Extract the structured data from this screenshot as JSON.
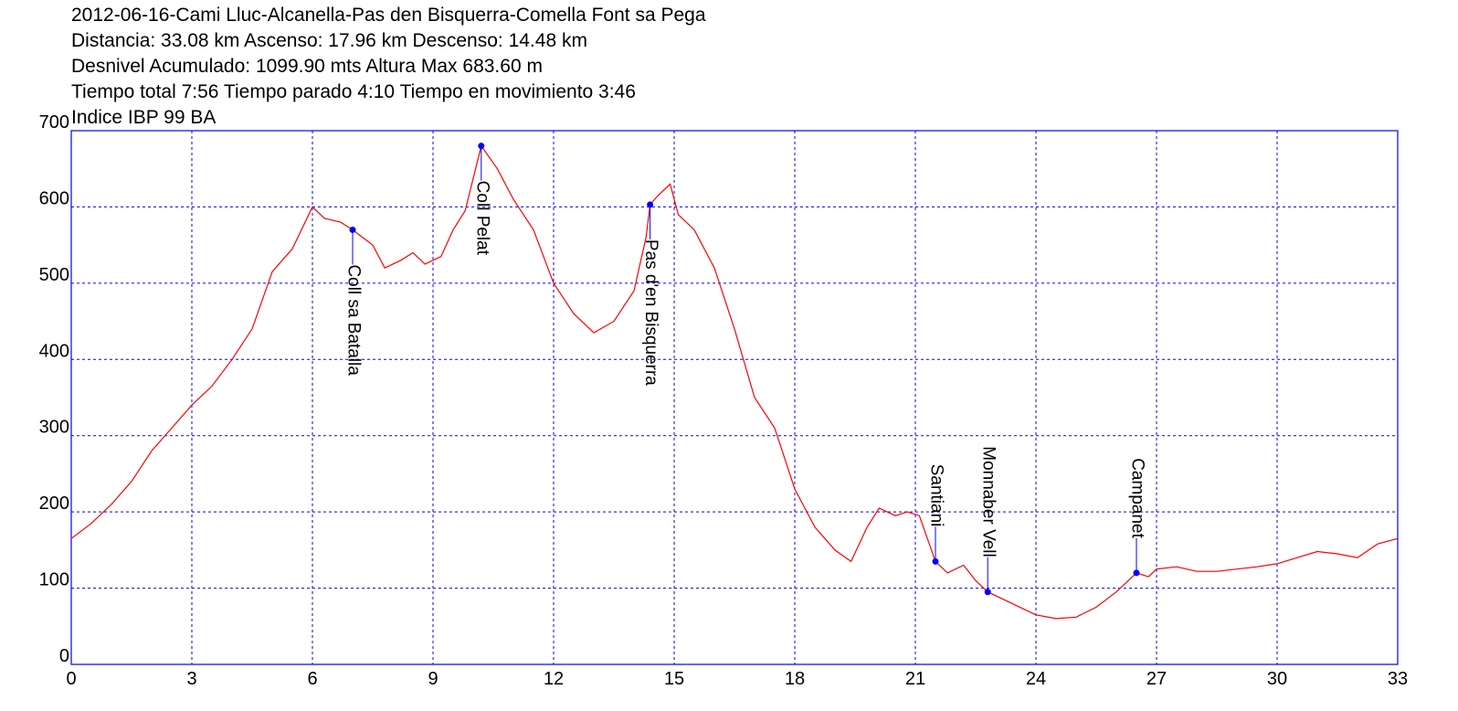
{
  "chart_data": {
    "type": "line",
    "title": "2012-06-16-Cami Lluc-Alcanella-Pas den Bisquerra-Comella Font sa Pega",
    "subtitle": [
      "Distancia: 33.08 km Ascenso: 17.96 km Descenso: 14.48 km",
      "Desnivel Acumulado: 1099.90 mts  Altura Max 683.60 m",
      "Tiempo total 7:56 Tiempo parado 4:10 Tiempo en movimiento 3:46",
      "Indice IBP 99 BA"
    ],
    "xlim": [
      0,
      33
    ],
    "ylim": [
      0,
      700
    ],
    "xticks": [
      0,
      3,
      6,
      9,
      12,
      15,
      18,
      21,
      24,
      27,
      30,
      33
    ],
    "yticks": [
      0,
      100,
      200,
      300,
      400,
      500,
      600,
      700
    ],
    "grid": true,
    "series": [
      {
        "color": "#ff0000",
        "x": [
          0,
          0.5,
          1,
          1.5,
          2,
          2.5,
          3,
          3.5,
          4,
          4.5,
          5,
          5.5,
          6,
          6.3,
          6.7,
          7,
          7.5,
          7.8,
          8.2,
          8.5,
          8.8,
          9.2,
          9.5,
          9.8,
          10.2,
          10.6,
          11,
          11.5,
          12,
          12.5,
          13,
          13.5,
          14,
          14.3,
          14.4,
          14.6,
          14.9,
          15.1,
          15.5,
          16,
          16.5,
          17,
          17.5,
          18,
          18.5,
          19,
          19.4,
          19.8,
          20.1,
          20.5,
          20.8,
          21.1,
          21.5,
          21.8,
          22.2,
          22.5,
          22.8,
          23.2,
          23.6,
          24,
          24.5,
          25,
          25.5,
          26,
          26.5,
          26.8,
          27,
          27.5,
          28,
          28.5,
          29,
          29.5,
          30,
          30.5,
          31,
          31.5,
          32,
          32.5,
          33
        ],
        "values": [
          165,
          185,
          210,
          240,
          280,
          310,
          340,
          365,
          400,
          440,
          515,
          545,
          600,
          585,
          580,
          570,
          550,
          520,
          530,
          540,
          525,
          535,
          570,
          595,
          680,
          650,
          610,
          570,
          500,
          460,
          435,
          450,
          490,
          560,
          603,
          615,
          630,
          590,
          570,
          520,
          440,
          350,
          310,
          230,
          180,
          150,
          135,
          180,
          205,
          195,
          200,
          195,
          135,
          120,
          130,
          110,
          95,
          85,
          75,
          65,
          60,
          62,
          75,
          95,
          120,
          115,
          125,
          128,
          122,
          122,
          125,
          128,
          132,
          140,
          148,
          145,
          140,
          158,
          165
        ]
      }
    ],
    "waypoints": [
      {
        "label": "Coll sa Batalla",
        "x": 7.0,
        "y": 570
      },
      {
        "label": "Coll Pelat",
        "x": 10.2,
        "y": 680
      },
      {
        "label": "Pas d'en Bisquerra",
        "x": 14.4,
        "y": 603
      },
      {
        "label": "Santiani",
        "x": 21.5,
        "y": 135
      },
      {
        "label": "Monnaber Vell",
        "x": 22.8,
        "y": 95
      },
      {
        "label": "Campanet",
        "x": 26.5,
        "y": 120
      }
    ],
    "waypoint_color": "#0000ff"
  }
}
